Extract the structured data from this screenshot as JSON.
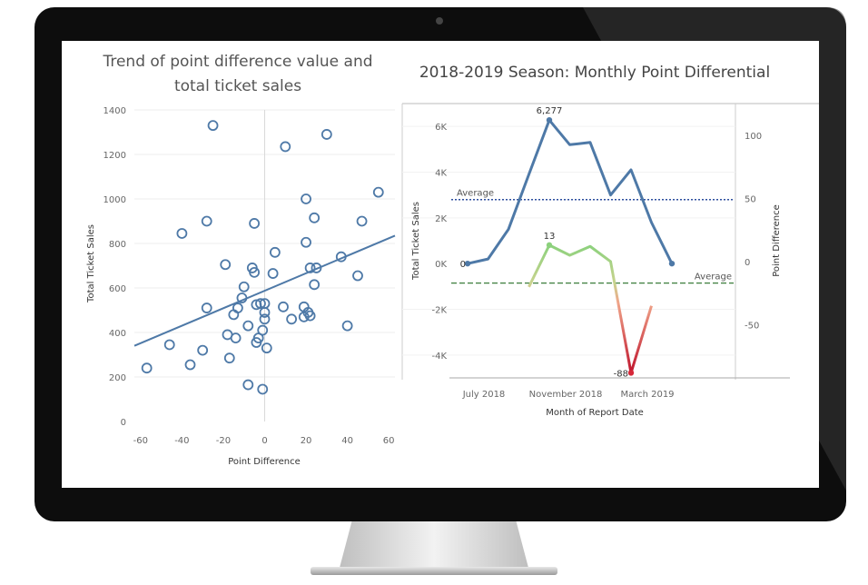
{
  "colors": {
    "bezel": "#0d0d0d",
    "screen": "#ffffff",
    "scatter_marker": "#4e79a7",
    "trend_line": "#4e79a7",
    "ticket_line": "#4e79a7",
    "ticket_avg": "#2c4e9e",
    "point_avg": "#3b7d3b",
    "point_pos": "#8cd17d",
    "point_neg": "#d62839"
  },
  "chart_data": [
    {
      "type": "scatter",
      "title_line1": "Trend of point difference value and",
      "title_line2": "total ticket sales",
      "xlabel": "Point Difference",
      "ylabel": "Total Ticket Sales",
      "xlim": [
        -63,
        63
      ],
      "ylim": [
        0,
        1400
      ],
      "xticks": [
        "-60",
        "-40",
        "-20",
        "0",
        "20",
        "40",
        "60"
      ],
      "yticks": [
        "0",
        "200",
        "400",
        "600",
        "800",
        "1000",
        "1200",
        "1400"
      ],
      "trend_line": {
        "x": [
          -63,
          63
        ],
        "y": [
          340,
          835
        ]
      },
      "points": [
        [
          -57,
          240
        ],
        [
          -46,
          345
        ],
        [
          -40,
          845
        ],
        [
          -36,
          255
        ],
        [
          -30,
          320
        ],
        [
          -28,
          900
        ],
        [
          -25,
          1330
        ],
        [
          -28,
          510
        ],
        [
          -19,
          705
        ],
        [
          -18,
          390
        ],
        [
          -17,
          285
        ],
        [
          -15,
          480
        ],
        [
          -14,
          375
        ],
        [
          -13,
          510
        ],
        [
          -11,
          555
        ],
        [
          -10,
          605
        ],
        [
          -8,
          430
        ],
        [
          -8,
          165
        ],
        [
          -6,
          690
        ],
        [
          -5,
          890
        ],
        [
          -5,
          670
        ],
        [
          -4,
          525
        ],
        [
          -4,
          355
        ],
        [
          -3,
          375
        ],
        [
          -2,
          530
        ],
        [
          -1,
          410
        ],
        [
          0,
          530
        ],
        [
          0,
          490
        ],
        [
          0,
          460
        ],
        [
          -1,
          145
        ],
        [
          1,
          330
        ],
        [
          4,
          665
        ],
        [
          5,
          760
        ],
        [
          9,
          515
        ],
        [
          10,
          1235
        ],
        [
          13,
          460
        ],
        [
          19,
          515
        ],
        [
          19,
          470
        ],
        [
          20,
          805
        ],
        [
          20,
          1000
        ],
        [
          21,
          490
        ],
        [
          22,
          475
        ],
        [
          22,
          690
        ],
        [
          24,
          615
        ],
        [
          24,
          915
        ],
        [
          25,
          690
        ],
        [
          30,
          1290
        ],
        [
          37,
          740
        ],
        [
          40,
          430
        ],
        [
          45,
          655
        ],
        [
          47,
          900
        ],
        [
          55,
          1030
        ]
      ]
    },
    {
      "type": "line",
      "title": "2018-2019 Season: Monthly Point Differential",
      "xlabel": "Month of Report Date",
      "ylabel_left": "Total Ticket Sales",
      "ylabel_right": "Point Difference",
      "x_ticks": [
        {
          "label": "July 2018",
          "index": 0.8
        },
        {
          "label": "November 2018",
          "index": 4.8
        },
        {
          "label": "March 2019",
          "index": 8.8
        }
      ],
      "ylim_left": [
        -5000,
        7000
      ],
      "yticks_left": [
        {
          "value": 6000,
          "label": "6K"
        },
        {
          "value": 4000,
          "label": "4K"
        },
        {
          "value": 2000,
          "label": "2K"
        },
        {
          "value": 0,
          "label": "0K"
        },
        {
          "value": -2000,
          "label": "-2K"
        },
        {
          "value": -4000,
          "label": "-4K"
        }
      ],
      "ylim_right": [
        -92,
        125
      ],
      "yticks_right": [
        "100",
        "50",
        "0",
        "-50"
      ],
      "ticket_sales": [
        0,
        200,
        1500,
        3900,
        6277,
        5200,
        5300,
        3000,
        4100,
        1800,
        0
      ],
      "ticket_labels": [
        {
          "index": 0,
          "text": "0"
        },
        {
          "index": 4,
          "text": "6,277"
        }
      ],
      "point_difference": [
        null,
        null,
        null,
        -20,
        13,
        5,
        12,
        0,
        -88,
        -35,
        null
      ],
      "point_labels": [
        {
          "index": 4,
          "text": "13"
        },
        {
          "index": 8,
          "text": "-88"
        }
      ],
      "ticket_average": 2800,
      "point_average": -17,
      "average_label": "Average"
    }
  ]
}
